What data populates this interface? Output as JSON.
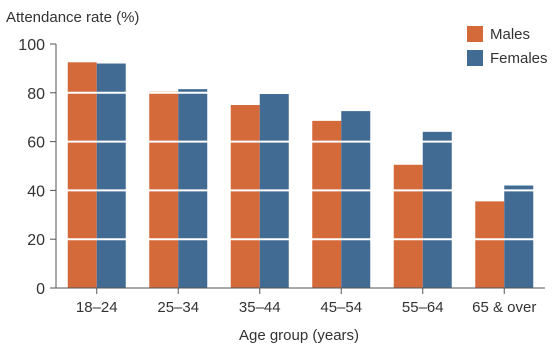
{
  "chart_data": {
    "type": "bar",
    "title": "",
    "ylabel": "Attendance rate (%)",
    "xlabel": "Age group (years)",
    "categories": [
      "18–24",
      "25–34",
      "35–44",
      "45–54",
      "55–64",
      "65 & over"
    ],
    "series": [
      {
        "name": "Males",
        "color": "#d4693a",
        "values": [
          92.5,
          80.5,
          75,
          68.5,
          50.5,
          35.5
        ]
      },
      {
        "name": "Females",
        "color": "#426b94",
        "values": [
          92,
          81.5,
          79.5,
          72.5,
          64,
          42
        ]
      }
    ],
    "ylim": [
      0,
      100
    ],
    "yticks": [
      0,
      20,
      40,
      60,
      80,
      100
    ],
    "grid": "horizontal white lines over bars",
    "legend_position": "top-right"
  }
}
